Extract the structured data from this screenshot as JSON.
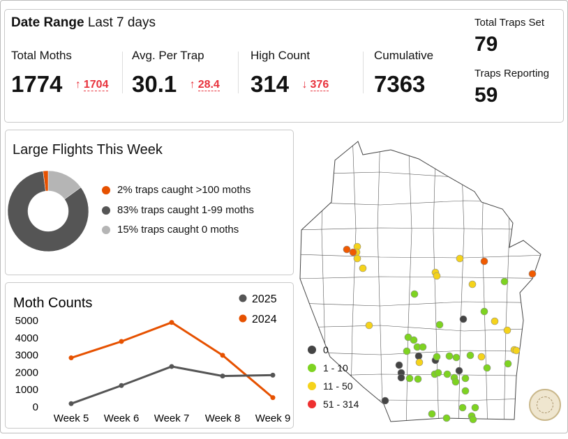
{
  "summary": {
    "date_range_label": "Date Range",
    "date_range_value": "Last 7 days",
    "metrics": [
      {
        "label": "Total Moths",
        "value": "1774",
        "change_arrow": "↑",
        "change": "1704"
      },
      {
        "label": "Avg. Per Trap",
        "value": "30.1",
        "change_arrow": "↑",
        "change": "28.4"
      },
      {
        "label": "High Count",
        "value": "314",
        "change_arrow": "↓",
        "change": "376"
      },
      {
        "label": "Cumulative",
        "value": "7363"
      }
    ],
    "total_traps_label": "Total Traps Set",
    "total_traps": "79",
    "reporting_label": "Traps Reporting",
    "reporting": "59"
  },
  "flights": {
    "title": "Large Flights This Week",
    "slices": [
      {
        "label": "2% traps caught >100 moths",
        "percent": 2,
        "color": "#e65100"
      },
      {
        "label": "83% traps caught 1-99 moths",
        "percent": 83,
        "color": "#555555"
      },
      {
        "label": "15% traps caught 0 moths",
        "percent": 15,
        "color": "#b5b5b5"
      }
    ]
  },
  "chart_data": {
    "type": "line",
    "title": "Moth Counts",
    "categories": [
      "Week 5",
      "Week 6",
      "Week 7",
      "Week 8",
      "Week 9"
    ],
    "yticks": [
      "0",
      "1000",
      "2000",
      "3000",
      "4000",
      "5000"
    ],
    "ylim": [
      0,
      5000
    ],
    "legend": "top-right",
    "grid": false,
    "series": [
      {
        "name": "2025",
        "color": "#555555",
        "values": [
          150,
          1200,
          2300,
          1750,
          1800
        ]
      },
      {
        "name": "2024",
        "color": "#e65100",
        "values": [
          2800,
          3750,
          4850,
          2950,
          500
        ]
      }
    ]
  },
  "map": {
    "legend": [
      {
        "label": "0",
        "color": "#444444"
      },
      {
        "label": "1 - 10",
        "color": "#7ed321"
      },
      {
        "label": "11 - 50",
        "color": "#f5d31b"
      },
      {
        "label": "51 - 314",
        "color": "#ee3030"
      }
    ],
    "seal": "Wisconsin Department of Agriculture seal"
  }
}
